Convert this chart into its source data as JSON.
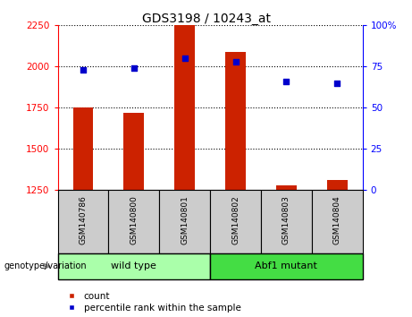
{
  "title": "GDS3198 / 10243_at",
  "samples": [
    "GSM140786",
    "GSM140800",
    "GSM140801",
    "GSM140802",
    "GSM140803",
    "GSM140804"
  ],
  "counts": [
    1750,
    1720,
    2250,
    2090,
    1280,
    1310
  ],
  "percentiles": [
    73,
    74,
    80,
    78,
    66,
    65
  ],
  "ylim_left": [
    1250,
    2250
  ],
  "ylim_right": [
    0,
    100
  ],
  "yticks_left": [
    1250,
    1500,
    1750,
    2000,
    2250
  ],
  "yticks_right": [
    0,
    25,
    50,
    75,
    100
  ],
  "groups": [
    {
      "label": "wild type",
      "indices": [
        0,
        1,
        2
      ],
      "color": "#AAFFAA"
    },
    {
      "label": "Abf1 mutant",
      "indices": [
        3,
        4,
        5
      ],
      "color": "#44DD44"
    }
  ],
  "bar_color": "#CC2200",
  "dot_color": "#0000CC",
  "bar_width": 0.4,
  "legend_items": [
    "count",
    "percentile rank within the sample"
  ],
  "legend_colors": [
    "#CC2200",
    "#0000CC"
  ]
}
